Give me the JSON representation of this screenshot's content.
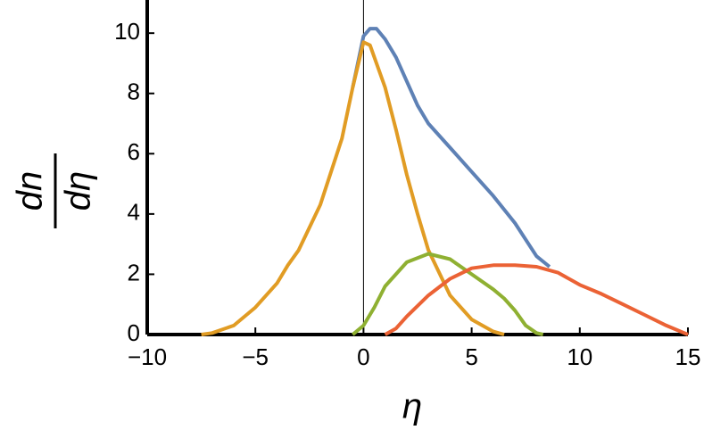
{
  "chart_data": {
    "type": "line",
    "x_label": "η",
    "y_label": {
      "numerator": "dn",
      "denominator": "dη"
    },
    "xlim": [
      -10,
      15
    ],
    "ylim": [
      0,
      11.1
    ],
    "xticks": [
      {
        "value": -10,
        "label": "−10"
      },
      {
        "value": -5,
        "label": "−5"
      },
      0,
      5,
      10,
      15
    ],
    "yticks": [
      0,
      2,
      4,
      6,
      8,
      10
    ],
    "series": [
      {
        "color": "#5e81b5",
        "x": [
          -0.5,
          0,
          0.3,
          0.6,
          1,
          1.5,
          2,
          2.5,
          3,
          4,
          5,
          6,
          7,
          8,
          8.6
        ],
        "values": [
          8.2,
          9.9,
          10.15,
          10.15,
          9.8,
          9.2,
          8.4,
          7.6,
          7.0,
          6.2,
          5.4,
          4.6,
          3.7,
          2.6,
          2.25
        ]
      },
      {
        "color": "#e19c24",
        "x": [
          -7.5,
          -7,
          -6,
          -5,
          -4,
          -3.5,
          -3,
          -2,
          -1,
          -0.5,
          0,
          0.3,
          1,
          1.5,
          2,
          2.5,
          3,
          4,
          5,
          6,
          6.5
        ],
        "values": [
          0,
          0.05,
          0.3,
          0.9,
          1.7,
          2.3,
          2.8,
          4.3,
          6.5,
          8.2,
          9.7,
          9.6,
          8.2,
          6.8,
          5.3,
          4.0,
          2.8,
          1.3,
          0.5,
          0.1,
          0
        ]
      },
      {
        "color": "#8fb032",
        "x": [
          -0.5,
          0,
          0.5,
          1,
          2,
          3,
          4,
          5,
          6,
          6.5,
          7,
          7.5,
          8,
          8.3
        ],
        "values": [
          0,
          0.3,
          0.9,
          1.6,
          2.4,
          2.68,
          2.5,
          2.0,
          1.5,
          1.2,
          0.8,
          0.3,
          0.05,
          0
        ]
      },
      {
        "color": "#eb6235",
        "x": [
          1,
          1.5,
          2,
          3,
          4,
          5,
          6,
          7,
          8,
          9,
          10,
          11,
          12,
          13,
          14,
          15
        ],
        "values": [
          0,
          0.2,
          0.6,
          1.3,
          1.85,
          2.2,
          2.3,
          2.3,
          2.25,
          2.05,
          1.65,
          1.35,
          1.0,
          0.65,
          0.3,
          0
        ]
      }
    ]
  }
}
